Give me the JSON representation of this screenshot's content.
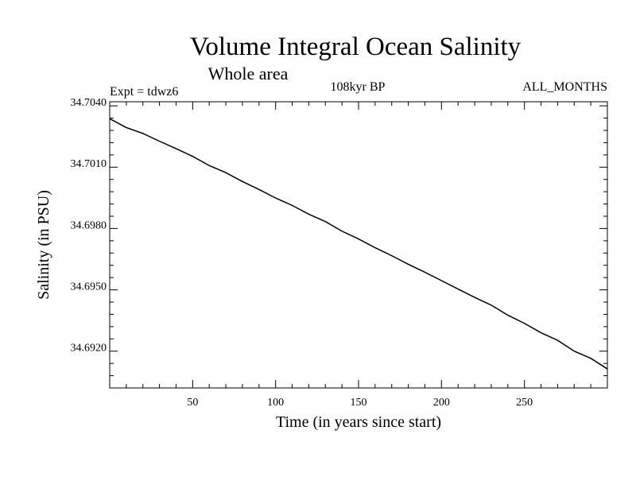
{
  "chart_data": {
    "type": "line",
    "title": "Volume Integral Ocean Salinity",
    "subtitle": "Whole area",
    "experiment": "Expt = tdwz6",
    "period": "108kyr BP",
    "months": "ALL_MONTHS",
    "xlabel": "Time (in years since start)",
    "ylabel": "Salinity (in PSU)",
    "xlim": [
      0,
      300
    ],
    "ylim": [
      34.69,
      34.704
    ],
    "x_ticks": [
      50,
      100,
      150,
      200,
      250
    ],
    "x_tick_labels": [
      "50",
      "100",
      "150",
      "200",
      "250"
    ],
    "y_ticks": [
      34.692,
      34.695,
      34.698,
      34.701,
      34.704
    ],
    "y_tick_labels": [
      "34.6920",
      "34.6950",
      "34.6980",
      "34.7010",
      "34.7040"
    ],
    "grid": false,
    "series": [
      {
        "x": [
          0,
          10,
          20,
          30,
          40,
          50,
          60,
          70,
          80,
          90,
          100,
          110,
          120,
          130,
          140,
          150,
          160,
          170,
          180,
          190,
          200,
          210,
          220,
          230,
          240,
          250,
          260,
          270,
          280,
          290,
          300
        ],
        "values": [
          34.70317,
          34.70274,
          34.70245,
          34.70207,
          34.70171,
          34.70133,
          34.70088,
          34.70053,
          34.7001,
          34.69971,
          34.69929,
          34.69893,
          34.6985,
          34.69814,
          34.69767,
          34.69729,
          34.69686,
          34.69647,
          34.69605,
          34.69566,
          34.69525,
          34.69484,
          34.69443,
          34.69405,
          34.69356,
          34.69316,
          34.6927,
          34.69233,
          34.6918,
          34.69145,
          34.69093
        ]
      }
    ]
  }
}
